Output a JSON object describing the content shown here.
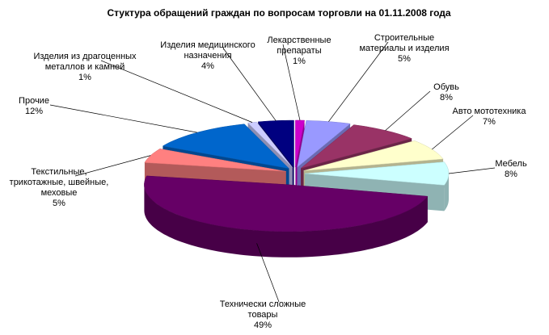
{
  "chart_data": {
    "type": "pie3d",
    "title": "Стуктура обращений граждан по вопросам торговли на 01.11.2008 года",
    "categories": [
      "Лекарственные\nпрепараты",
      "Строительные\nматериалы и изделия",
      "Обувь",
      "Авто мототехника",
      "Мебель",
      "Технически сложные\nтовары",
      "Текстильные,\nтрикотажные, швейные,\nмеховые",
      "Прочие",
      "Изделия из драгоценных\nметаллов и камней",
      "Изделия медицинского\nназначения"
    ],
    "values": [
      1,
      5,
      8,
      7,
      8,
      49,
      5,
      12,
      1,
      4
    ],
    "value_labels": [
      "1%",
      "5%",
      "8%",
      "7%",
      "8%",
      "49%",
      "5%",
      "12%",
      "1%",
      "4%"
    ],
    "colors": [
      "#cc00cc",
      "#9999ff",
      "#993366",
      "#ffffcc",
      "#ccffff",
      "#660066",
      "#ff8080",
      "#0066cc",
      "#ccccff",
      "#000080"
    ]
  }
}
